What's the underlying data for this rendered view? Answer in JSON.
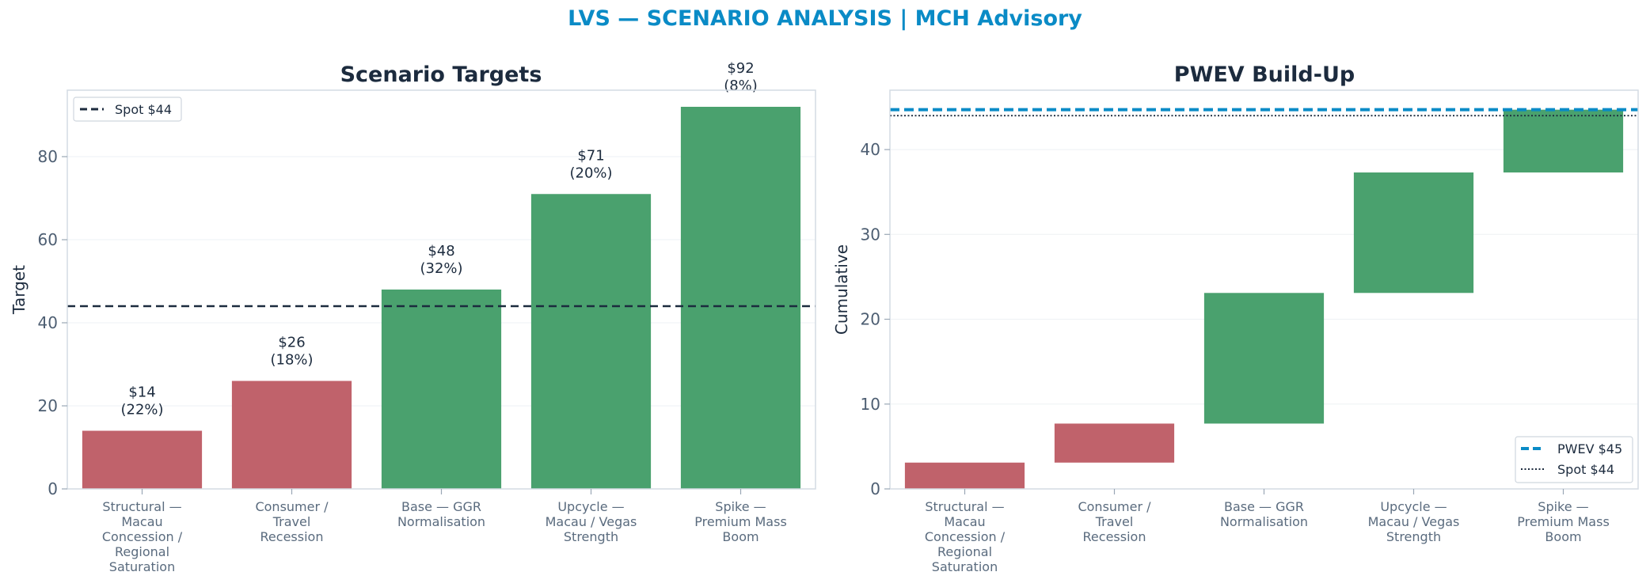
{
  "title": "LVS — SCENARIO ANALYSIS | MCH Advisory",
  "colors": {
    "title": "#0a8bc6",
    "downside": "#c0626b",
    "upside": "#4aa16e",
    "spot_line": "#1c2b3e",
    "pwev_line": "#0a8bc6"
  },
  "chart_data": [
    {
      "type": "bar",
      "title": "Scenario Targets",
      "xlabel": "",
      "ylabel": "Target",
      "ylim": [
        0,
        96
      ],
      "yticks": [
        0,
        20,
        40,
        60,
        80
      ],
      "grid": true,
      "categories": [
        "Structural — Macau Concession / Regional Saturation",
        "Consumer / Travel Recession",
        "Base — GGR Normalisation",
        "Upcycle — Macau / Vegas Strength",
        "Spike — Premium Mass Boom"
      ],
      "category_lines": [
        [
          "Structural —",
          "Macau",
          "Concession /",
          "Regional",
          "Saturation"
        ],
        [
          "Consumer /",
          "Travel",
          "Recession"
        ],
        [
          "Base — GGR",
          "Normalisation"
        ],
        [
          "Upcycle —",
          "Macau / Vegas",
          "Strength"
        ],
        [
          "Spike —",
          "Premium Mass",
          "Boom"
        ]
      ],
      "values": [
        14,
        26,
        48,
        71,
        92
      ],
      "probabilities": [
        22,
        18,
        32,
        20,
        8
      ],
      "data_labels": [
        [
          "$14",
          "(22%)"
        ],
        [
          "$26",
          "(18%)"
        ],
        [
          "$48",
          "(32%)"
        ],
        [
          "$71",
          "(20%)"
        ],
        [
          "$92",
          "(8%)"
        ]
      ],
      "bar_colors": [
        "downside",
        "downside",
        "upside",
        "upside",
        "upside"
      ],
      "reference_line": {
        "label": "Spot $44",
        "value": 44,
        "style": "dashed"
      },
      "legend_placement": "top-left"
    },
    {
      "type": "bar",
      "subtype": "waterfall",
      "title": "PWEV Build-Up",
      "xlabel": "",
      "ylabel": "Cumulative",
      "ylim": [
        0,
        47
      ],
      "yticks": [
        0,
        10,
        20,
        30,
        40
      ],
      "grid": true,
      "categories": [
        "Structural — Macau Concession / Regional Saturation",
        "Consumer / Travel Recession",
        "Base — GGR Normalisation",
        "Upcycle — Macau / Vegas Strength",
        "Spike — Premium Mass Boom"
      ],
      "category_lines": [
        [
          "Structural —",
          "Macau",
          "Concession /",
          "Regional",
          "Saturation"
        ],
        [
          "Consumer /",
          "Travel",
          "Recession"
        ],
        [
          "Base — GGR",
          "Normalisation"
        ],
        [
          "Upcycle —",
          "Macau / Vegas",
          "Strength"
        ],
        [
          "Spike —",
          "Premium Mass",
          "Boom"
        ]
      ],
      "segments": [
        {
          "start": 0.0,
          "end": 3.1
        },
        {
          "start": 3.1,
          "end": 7.7
        },
        {
          "start": 7.7,
          "end": 23.1
        },
        {
          "start": 23.1,
          "end": 37.3
        },
        {
          "start": 37.3,
          "end": 44.7
        }
      ],
      "bar_colors": [
        "downside",
        "downside",
        "upside",
        "upside",
        "upside"
      ],
      "reference_lines": [
        {
          "label": "PWEV $45",
          "value": 44.7,
          "style": "dashed"
        },
        {
          "label": "Spot $44",
          "value": 44,
          "style": "dotted"
        }
      ],
      "legend_placement": "bottom-right"
    }
  ]
}
